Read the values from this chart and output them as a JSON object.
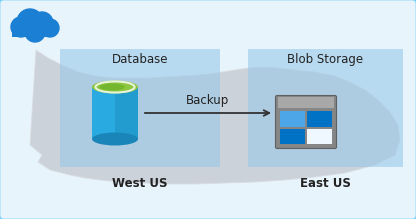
{
  "bg_outer": "#c5e3f5",
  "bg_inner": "#e8f4fc",
  "map_color": "#c8cdd4",
  "map_edge": "#d8dde2",
  "region_left_color": "#99c9e8",
  "region_right_color": "#99c9e8",
  "region_left_label": "Database",
  "region_right_label": "Blob Storage",
  "label_left": "West US",
  "label_right": "East US",
  "arrow_label": "Backup",
  "cloud_color": "#1b7fd4",
  "db_body_left": "#29abe2",
  "db_body_right": "#1e90c0",
  "db_top_color": "#8dc63f",
  "db_top_inner": "#6ab229",
  "blob_frame_top": "#909090",
  "blob_frame_body": "#787878",
  "blob_blue_light": "#4da6e8",
  "blob_blue_dark": "#0072c6",
  "blob_white": "#f0f8ff",
  "border_color": "#7ecff5",
  "text_color": "#222222",
  "arrow_color": "#333333"
}
